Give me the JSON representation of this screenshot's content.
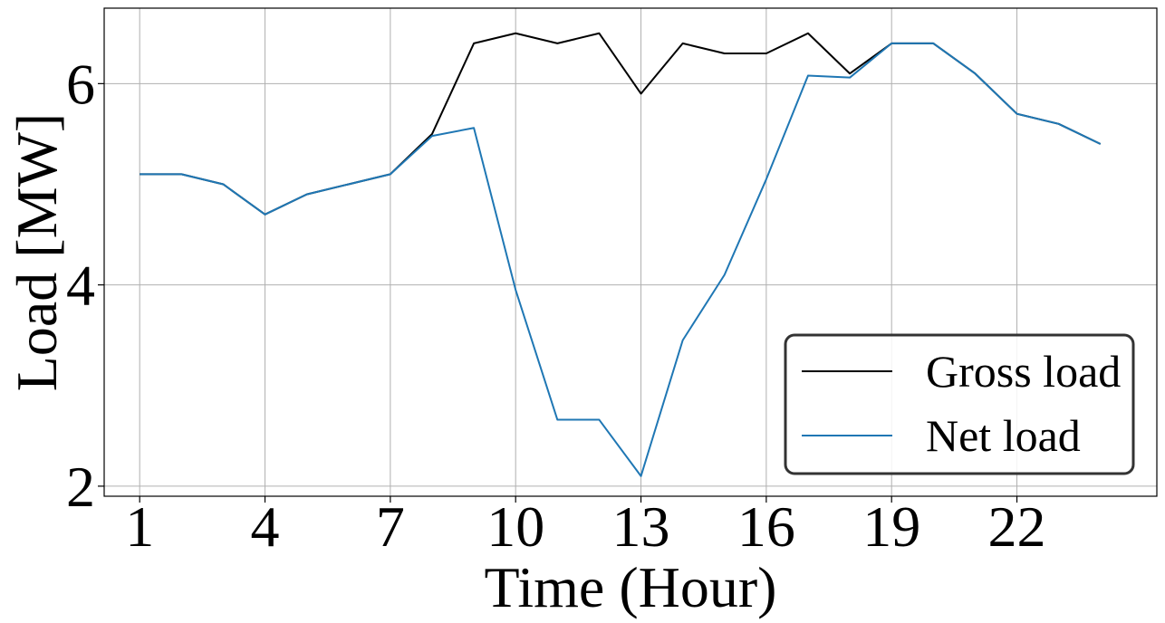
{
  "chart_data": {
    "type": "line",
    "xlabel": "Time (Hour)",
    "ylabel": "Load [MW]",
    "x": [
      1,
      2,
      3,
      4,
      5,
      6,
      7,
      8,
      9,
      10,
      11,
      12,
      13,
      14,
      15,
      16,
      17,
      18,
      19,
      20,
      21,
      22,
      23,
      24
    ],
    "xticks": [
      1,
      4,
      7,
      10,
      13,
      16,
      19,
      22
    ],
    "yticks": [
      2,
      4,
      6
    ],
    "xlim": [
      0.15,
      25.35
    ],
    "ylim": [
      1.9,
      6.75
    ],
    "grid": true,
    "legend_position": "bottom-right",
    "series": [
      {
        "name": "Gross load",
        "color": "#000000",
        "values": [
          5.1,
          5.1,
          5.0,
          4.7,
          4.9,
          5.0,
          5.1,
          5.5,
          6.4,
          6.5,
          6.4,
          6.5,
          5.9,
          6.4,
          6.3,
          6.3,
          6.5,
          6.1,
          6.4,
          6.4,
          6.1,
          5.7,
          5.6,
          5.4
        ]
      },
      {
        "name": "Net load",
        "color": "#1f77b4",
        "values": [
          5.1,
          5.1,
          5.0,
          4.7,
          4.9,
          5.0,
          5.1,
          5.48,
          5.56,
          3.95,
          2.66,
          2.66,
          2.1,
          3.45,
          4.1,
          5.05,
          6.08,
          6.06,
          6.4,
          6.4,
          6.1,
          5.7,
          5.6,
          5.4
        ]
      }
    ]
  }
}
